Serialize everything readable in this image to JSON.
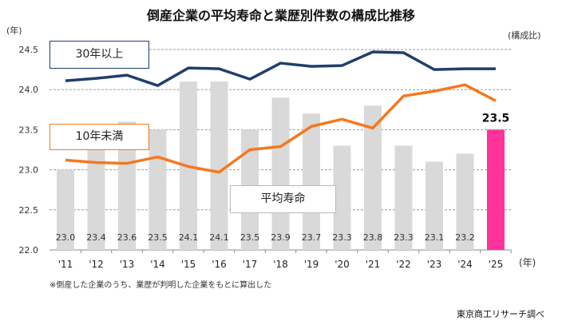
{
  "chart_data": {
    "type": "bar",
    "title": "倒産企業の平均寿命と業歴別件数の構成比推移",
    "ylabel": "(年)",
    "y2label": "(構成比)",
    "xlabel": "(年)",
    "ylim": [
      22.0,
      24.5
    ],
    "yticks": [
      "22.0",
      "22.5",
      "23.0",
      "23.5",
      "24.0",
      "24.5"
    ],
    "grid": true,
    "categories": [
      "'11",
      "'12",
      "'13",
      "'14",
      "'15",
      "'16",
      "'17",
      "'18",
      "'19",
      "'20",
      "'21",
      "'22",
      "'23",
      "'24",
      "'25"
    ],
    "bars": {
      "name": "平均寿命",
      "values": [
        23.0,
        23.4,
        23.6,
        23.5,
        24.1,
        24.1,
        23.5,
        23.9,
        23.7,
        23.3,
        23.8,
        23.3,
        23.1,
        23.2,
        23.5
      ],
      "labels": [
        "23.0",
        "23.4",
        "23.6",
        "23.5",
        "24.1",
        "24.1",
        "23.5",
        "23.9",
        "23.7",
        "23.3",
        "23.8",
        "23.3",
        "23.1",
        "23.2",
        "23.5"
      ],
      "color": "#d9d9d9",
      "highlight_color": "#ff3399"
    },
    "series": [
      {
        "name": "30年以上",
        "color": "#1f3f6e",
        "values": [
          24.11,
          24.14,
          24.18,
          24.05,
          24.27,
          24.26,
          24.13,
          24.33,
          24.29,
          24.3,
          24.47,
          24.46,
          24.25,
          24.26,
          24.26
        ]
      },
      {
        "name": "10年未満",
        "color": "#f5781e",
        "values": [
          23.12,
          23.09,
          23.08,
          23.16,
          23.04,
          22.97,
          23.25,
          23.29,
          23.54,
          23.63,
          23.52,
          23.92,
          23.98,
          24.06,
          23.86
        ]
      }
    ],
    "note": "※倒産した企業のうち、業歴が判明した企業をもとに算出した",
    "source": "東京商工リサーチ調べ"
  }
}
